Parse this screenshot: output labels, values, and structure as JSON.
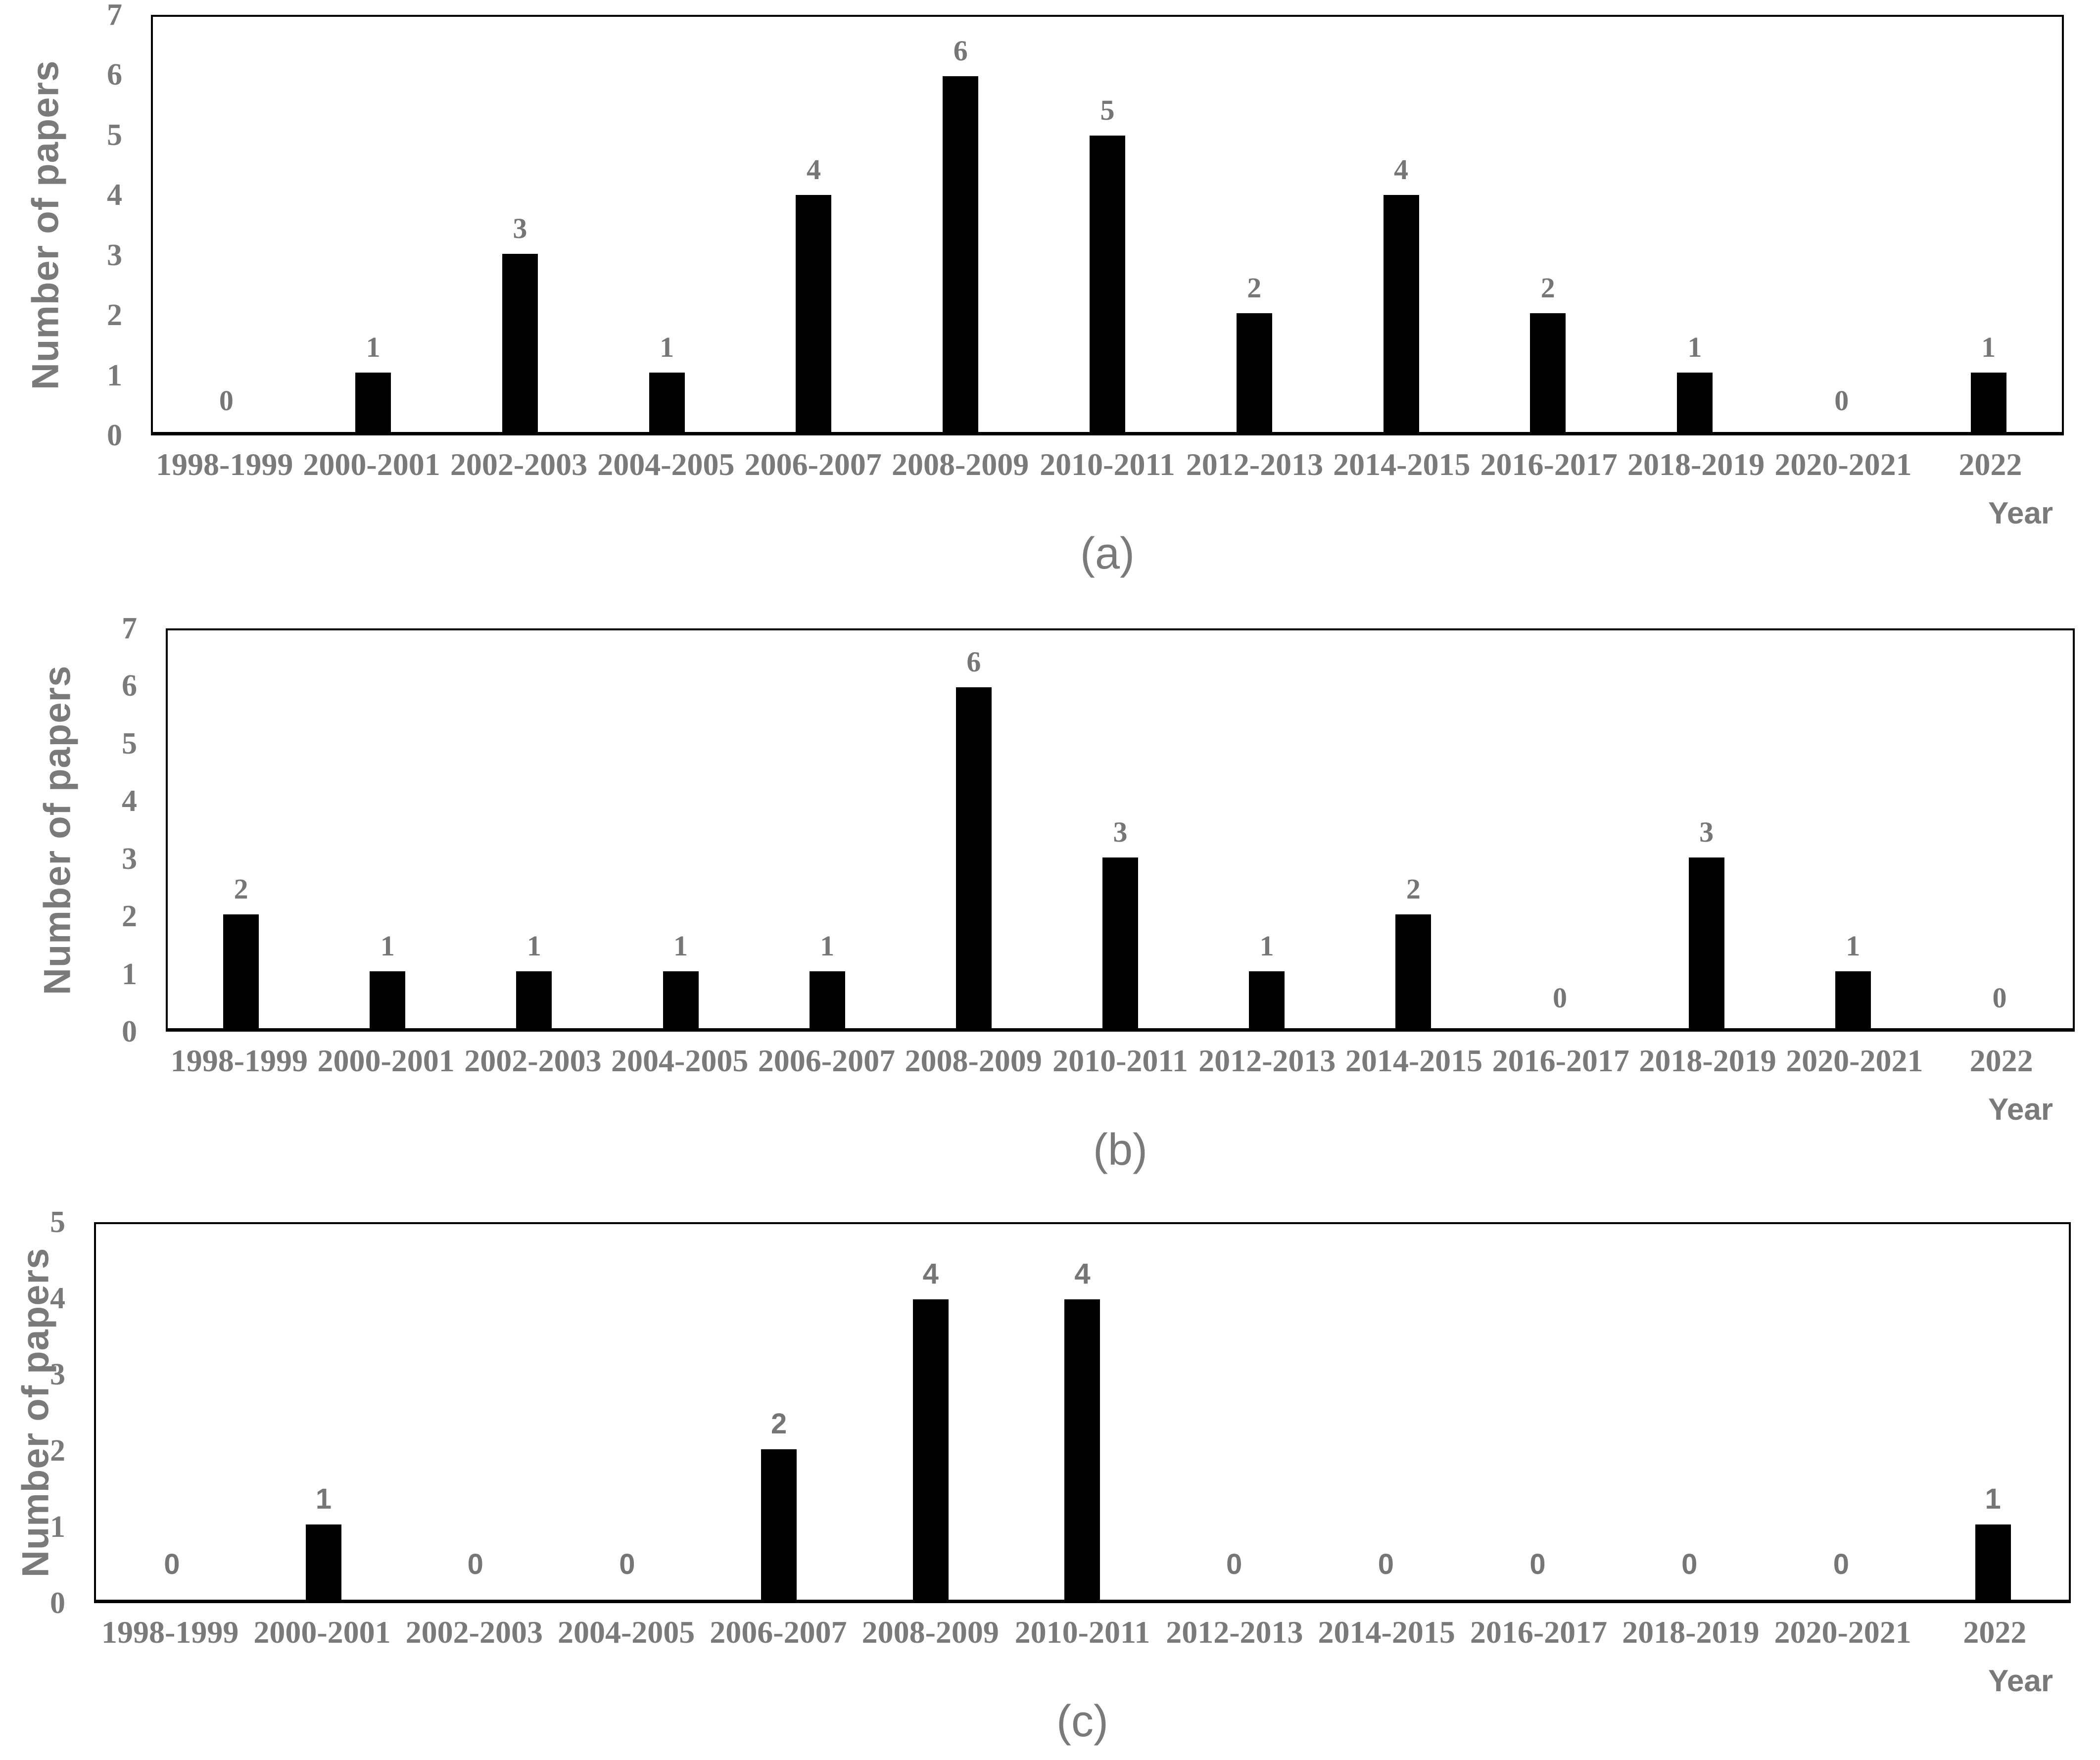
{
  "figure": {
    "background": "#ffffff",
    "text_color": "#7a7a7a",
    "bar_color": "#000000"
  },
  "chart_data": [
    {
      "type": "bar",
      "panel": "a",
      "title": "(a)",
      "ylabel": "Number of papers",
      "xlabel": "Year",
      "ylim": [
        0,
        7
      ],
      "yticks": [
        0,
        1,
        2,
        3,
        4,
        5,
        6,
        7
      ],
      "grid": false,
      "legend": "none",
      "value_label_font": "serif",
      "categories": [
        "1998-1999",
        "2000-2001",
        "2002-2003",
        "2004-2005",
        "2006-2007",
        "2008-2009",
        "2010-2011",
        "2012-2013",
        "2014-2015",
        "2016-2017",
        "2018-2019",
        "2020-2021",
        "2022"
      ],
      "values": [
        0,
        1,
        3,
        1,
        4,
        6,
        5,
        2,
        4,
        2,
        1,
        0,
        1
      ]
    },
    {
      "type": "bar",
      "panel": "b",
      "title": "(b)",
      "ylabel": "Number of papers",
      "xlabel": "Year",
      "ylim": [
        0,
        7
      ],
      "yticks": [
        0,
        1,
        2,
        3,
        4,
        5,
        6,
        7
      ],
      "grid": false,
      "legend": "none",
      "value_label_font": "serif",
      "categories": [
        "1998-1999",
        "2000-2001",
        "2002-2003",
        "2004-2005",
        "2006-2007",
        "2008-2009",
        "2010-2011",
        "2012-2013",
        "2014-2015",
        "2016-2017",
        "2018-2019",
        "2020-2021",
        "2022"
      ],
      "values": [
        2,
        1,
        1,
        1,
        1,
        6,
        3,
        1,
        2,
        0,
        3,
        1,
        0
      ]
    },
    {
      "type": "bar",
      "panel": "c",
      "title": "(c)",
      "ylabel": "Number of papers",
      "xlabel": "Year",
      "ylim": [
        0,
        5
      ],
      "yticks": [
        0,
        1,
        2,
        3,
        4,
        5
      ],
      "grid": false,
      "legend": "none",
      "value_label_font": "sans",
      "categories": [
        "1998-1999",
        "2000-2001",
        "2002-2003",
        "2004-2005",
        "2006-2007",
        "2008-2009",
        "2010-2011",
        "2012-2013",
        "2014-2015",
        "2016-2017",
        "2018-2019",
        "2020-2021",
        "2022"
      ],
      "values": [
        0,
        1,
        0,
        0,
        2,
        4,
        4,
        0,
        0,
        0,
        0,
        0,
        1
      ]
    }
  ]
}
